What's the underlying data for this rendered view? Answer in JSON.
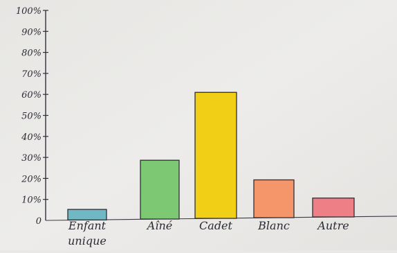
{
  "chart_data": {
    "type": "bar",
    "categories": [
      "Enfant unique",
      "Aîné",
      "Cadet",
      "Blanc",
      "Autre"
    ],
    "category_lines": [
      [
        "Enfant",
        "unique"
      ],
      [
        "Aîné"
      ],
      [
        "Cadet"
      ],
      [
        "Blanc"
      ],
      [
        "Autre"
      ]
    ],
    "values": [
      5,
      28,
      60,
      18,
      9
    ],
    "colors": [
      "#6fb8c4",
      "#7dc873",
      "#f1cf16",
      "#f4956a",
      "#ee7f86"
    ],
    "yticks": [
      "0",
      "10%",
      "20%",
      "30%",
      "40%",
      "50%",
      "60%",
      "70%",
      "80%",
      "90%",
      "100%"
    ],
    "ylim": [
      0,
      100
    ],
    "title": "",
    "xlabel": "",
    "ylabel": "",
    "grid": false,
    "legend": "none"
  }
}
